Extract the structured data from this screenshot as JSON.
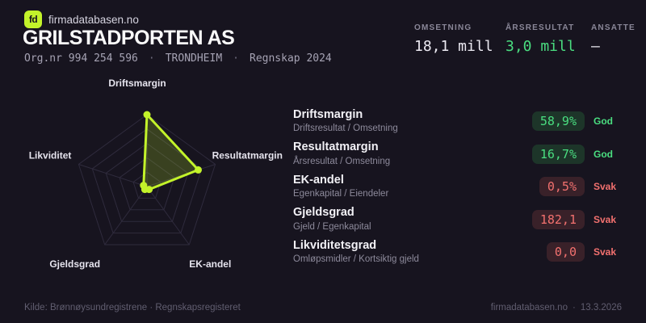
{
  "brand": {
    "logo_text": "fd",
    "name": "firmadatabasen.no",
    "accent_color": "#c3f32a"
  },
  "header": {
    "title": "GRILSTADPORTEN AS",
    "orgnr": "Org.nr 994 254 596",
    "city": "TRONDHEIM",
    "period": "Regnskap 2024",
    "separator": "·"
  },
  "stats": [
    {
      "label": "OMSETNING",
      "value": "18,1 mill",
      "tone": "neutral"
    },
    {
      "label": "ÅRSRESULTAT",
      "value": "3,0 mill",
      "tone": "positive"
    },
    {
      "label": "ANSATTE",
      "value": "–",
      "tone": "neutral"
    }
  ],
  "chart_data": {
    "type": "radar",
    "axes": [
      "Driftsmargin",
      "Resultatmargin",
      "EK-andel",
      "Gjeldsgrad",
      "Likviditet"
    ],
    "values_normalized": [
      1.0,
      0.75,
      0.05,
      0.05,
      0.05
    ],
    "rings": 5,
    "range": [
      0,
      1
    ],
    "stroke_color": "#c3f32a",
    "fill_color": "rgba(195,243,42,0.2)",
    "grid_color": "#2f2b3d",
    "legend": "none"
  },
  "metrics": [
    {
      "name": "Driftsmargin",
      "formula": "Driftsresultat / Omsetning",
      "value": "58,9%",
      "status": "God",
      "tone": "good"
    },
    {
      "name": "Resultatmargin",
      "formula": "Årsresultat / Omsetning",
      "value": "16,7%",
      "status": "God",
      "tone": "good"
    },
    {
      "name": "EK-andel",
      "formula": "Egenkapital / Eiendeler",
      "value": "0,5%",
      "status": "Svak",
      "tone": "bad"
    },
    {
      "name": "Gjeldsgrad",
      "formula": "Gjeld / Egenkapital",
      "value": "182,1",
      "status": "Svak",
      "tone": "bad"
    },
    {
      "name": "Likviditetsgrad",
      "formula": "Omløpsmidler / Kortsiktig gjeld",
      "value": "0,0",
      "status": "Svak",
      "tone": "bad"
    }
  ],
  "footer": {
    "source": "Kilde: Brønnøysundregistrene · Regnskapsregisteret",
    "site": "firmadatabasen.no",
    "separator": "·",
    "date": "13.3.2026"
  },
  "colors": {
    "background": "#17141f",
    "positive": "#4ade80",
    "negative": "#f3716f"
  }
}
